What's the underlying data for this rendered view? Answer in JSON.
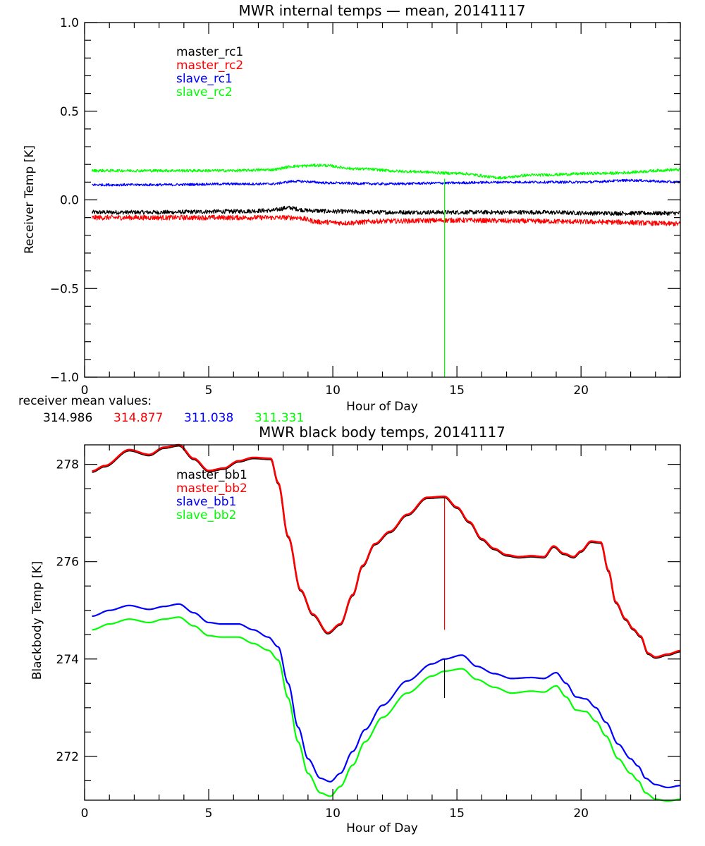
{
  "colors": {
    "black": "#000000",
    "red": "#ff0000",
    "blue": "#0000ff",
    "green": "#00ff00"
  },
  "receiver_mean": {
    "label": "receiver mean values:",
    "values": [
      {
        "text": "314.986",
        "color": "#000000"
      },
      {
        "text": "314.877",
        "color": "#ff0000"
      },
      {
        "text": "311.038",
        "color": "#0000ff"
      },
      {
        "text": "311.331",
        "color": "#00ff00"
      }
    ]
  },
  "chart_data": [
    {
      "type": "line",
      "title": "MWR internal temps — mean, 20141117",
      "xlabel": "Hour of Day",
      "ylabel": "Receiver Temp [K]",
      "xlim": [
        0,
        24
      ],
      "ylim": [
        -1.0,
        1.0
      ],
      "xticks": [
        0,
        5,
        10,
        15,
        20
      ],
      "xtick_labels": [
        "0",
        "5",
        "10",
        "15",
        "20"
      ],
      "yticks": [
        -1.0,
        -0.5,
        0.0,
        0.5,
        1.0
      ],
      "ytick_labels": [
        "−1.0",
        "−0.5",
        "0.0",
        "0.5",
        "1.0"
      ],
      "legend_placement": "top-left",
      "noisy": true,
      "series": [
        {
          "name": "master_rc1",
          "color": "#000000",
          "noise": 0.012,
          "x": [
            0.3,
            3,
            6,
            7.5,
            8.2,
            9,
            10,
            12,
            15,
            18,
            21,
            24
          ],
          "y": [
            -0.07,
            -0.07,
            -0.065,
            -0.06,
            -0.045,
            -0.06,
            -0.065,
            -0.07,
            -0.07,
            -0.07,
            -0.075,
            -0.075
          ]
        },
        {
          "name": "master_rc2",
          "color": "#ff0000",
          "noise": 0.014,
          "x": [
            0.3,
            3,
            6,
            8.5,
            9.5,
            10.5,
            12,
            15,
            18,
            21,
            24
          ],
          "y": [
            -0.1,
            -0.1,
            -0.1,
            -0.1,
            -0.125,
            -0.13,
            -0.12,
            -0.115,
            -0.12,
            -0.125,
            -0.135
          ]
        },
        {
          "name": "slave_rc1",
          "color": "#0000ff",
          "noise": 0.007,
          "x": [
            0.3,
            3,
            6,
            7.5,
            8.5,
            10,
            12,
            14.5,
            17,
            20,
            22,
            24
          ],
          "y": [
            0.085,
            0.085,
            0.09,
            0.09,
            0.105,
            0.095,
            0.09,
            0.095,
            0.1,
            0.1,
            0.11,
            0.1
          ]
        },
        {
          "name": "slave_rc2",
          "color": "#00ff00",
          "noise": 0.008,
          "x": [
            0.3,
            3,
            6,
            7.5,
            8.5,
            9.5,
            11,
            13,
            15,
            16.8,
            18,
            21,
            24
          ],
          "y": [
            0.165,
            0.165,
            0.165,
            0.17,
            0.19,
            0.195,
            0.175,
            0.16,
            0.15,
            0.125,
            0.14,
            0.15,
            0.17
          ]
        }
      ],
      "spikes": [
        {
          "color": "#00ff00",
          "x": 14.5,
          "from": 0.12,
          "to": -1.0
        }
      ]
    },
    {
      "type": "line",
      "title": "MWR black body temps, 20141117",
      "xlabel": "Hour of Day",
      "ylabel": "Blackbody Temp [K]",
      "xlim": [
        0,
        24
      ],
      "ylim": [
        271.1,
        278.4
      ],
      "xticks": [
        0,
        5,
        10,
        15,
        20
      ],
      "xtick_labels": [
        "0",
        "5",
        "10",
        "15",
        "20"
      ],
      "yticks": [
        272,
        274,
        276,
        278
      ],
      "ytick_labels": [
        "272",
        "274",
        "276",
        "278"
      ],
      "legend_placement": "top-left",
      "noisy": false,
      "series": [
        {
          "name": "master_bb1",
          "color": "#000000",
          "x": [
            0.3,
            0.8,
            1.8,
            2.6,
            3.2,
            3.8,
            4.4,
            5.0,
            5.6,
            6.2,
            6.8,
            7.5,
            7.8,
            8.2,
            8.7,
            9.2,
            9.8,
            10.3,
            10.8,
            11.2,
            11.7,
            12.3,
            13.0,
            13.8,
            14.5,
            15.0,
            15.5,
            16.0,
            16.5,
            17.0,
            17.5,
            18.0,
            18.5,
            18.9,
            19.3,
            19.7,
            20.0,
            20.4,
            20.8,
            21.1,
            21.4,
            21.8,
            22.1,
            22.4,
            22.7,
            23.0,
            23.5,
            24.0
          ],
          "y": [
            277.84,
            277.95,
            278.28,
            278.18,
            278.33,
            278.38,
            278.1,
            277.85,
            277.9,
            278.05,
            278.12,
            278.1,
            277.6,
            276.5,
            275.4,
            274.9,
            274.52,
            274.7,
            275.3,
            275.9,
            276.35,
            276.6,
            276.95,
            277.3,
            277.32,
            277.1,
            276.8,
            276.45,
            276.25,
            276.12,
            276.08,
            276.1,
            276.08,
            276.3,
            276.15,
            276.08,
            276.2,
            276.4,
            276.38,
            275.8,
            275.15,
            274.8,
            274.6,
            274.45,
            274.1,
            274.02,
            274.08,
            274.15
          ]
        },
        {
          "name": "master_bb2",
          "color": "#ff0000",
          "x": [
            0.3,
            0.8,
            1.8,
            2.6,
            3.2,
            3.8,
            4.4,
            5.0,
            5.6,
            6.2,
            6.8,
            7.5,
            7.8,
            8.2,
            8.7,
            9.2,
            9.8,
            10.3,
            10.8,
            11.2,
            11.7,
            12.3,
            13.0,
            13.8,
            14.5,
            15.0,
            15.5,
            16.0,
            16.5,
            17.0,
            17.5,
            18.0,
            18.5,
            18.9,
            19.3,
            19.7,
            20.0,
            20.4,
            20.8,
            21.1,
            21.4,
            21.8,
            22.1,
            22.4,
            22.7,
            23.0,
            23.5,
            24.0
          ],
          "y": [
            277.86,
            277.97,
            278.3,
            278.2,
            278.35,
            278.4,
            278.12,
            277.87,
            277.92,
            278.07,
            278.14,
            278.12,
            277.62,
            276.52,
            275.42,
            274.92,
            274.54,
            274.72,
            275.32,
            275.92,
            276.37,
            276.62,
            276.97,
            277.32,
            277.34,
            277.12,
            276.82,
            276.47,
            276.27,
            276.14,
            276.1,
            276.12,
            276.1,
            276.32,
            276.17,
            276.1,
            276.22,
            276.42,
            276.4,
            275.82,
            275.17,
            274.82,
            274.62,
            274.47,
            274.12,
            274.04,
            274.1,
            274.17
          ]
        },
        {
          "name": "slave_bb1",
          "color": "#0000ff",
          "x": [
            0.3,
            1.0,
            1.8,
            2.6,
            3.2,
            3.8,
            4.4,
            5.0,
            5.5,
            6.2,
            6.8,
            7.4,
            7.8,
            8.2,
            8.6,
            9.0,
            9.5,
            9.9,
            10.3,
            10.8,
            11.3,
            12.0,
            13.0,
            14.0,
            14.5,
            15.2,
            15.8,
            16.5,
            17.2,
            18.0,
            18.5,
            19.0,
            19.4,
            19.8,
            20.2,
            20.6,
            21.0,
            21.5,
            22.0,
            22.3,
            22.6,
            23.0,
            23.5,
            24.0
          ],
          "y": [
            274.88,
            275.0,
            275.1,
            275.02,
            275.08,
            275.13,
            274.95,
            274.75,
            274.72,
            274.72,
            274.6,
            274.45,
            274.25,
            273.5,
            272.6,
            271.95,
            271.55,
            271.48,
            271.65,
            272.1,
            272.55,
            273.05,
            273.55,
            273.9,
            274.0,
            274.08,
            273.85,
            273.7,
            273.6,
            273.62,
            273.6,
            273.72,
            273.5,
            273.22,
            273.18,
            273.0,
            272.7,
            272.25,
            271.95,
            271.8,
            271.55,
            271.42,
            271.36,
            271.4
          ]
        },
        {
          "name": "slave_bb2",
          "color": "#00ff00",
          "x": [
            0.3,
            1.0,
            1.8,
            2.6,
            3.2,
            3.8,
            4.4,
            5.0,
            5.5,
            6.2,
            6.8,
            7.4,
            7.8,
            8.2,
            8.6,
            9.0,
            9.5,
            9.9,
            10.3,
            10.8,
            11.3,
            12.0,
            13.0,
            14.0,
            14.5,
            15.2,
            15.8,
            16.5,
            17.2,
            18.0,
            18.5,
            19.0,
            19.4,
            19.8,
            20.2,
            20.6,
            21.0,
            21.5,
            22.0,
            22.3,
            22.6,
            23.0,
            23.5,
            24.0
          ],
          "y": [
            274.6,
            274.72,
            274.82,
            274.75,
            274.82,
            274.86,
            274.68,
            274.48,
            274.45,
            274.45,
            274.32,
            274.18,
            273.98,
            273.2,
            272.3,
            271.65,
            271.25,
            271.18,
            271.38,
            271.82,
            272.3,
            272.8,
            273.3,
            273.65,
            273.75,
            273.8,
            273.58,
            273.42,
            273.3,
            273.34,
            273.32,
            273.45,
            273.22,
            272.95,
            272.92,
            272.72,
            272.42,
            271.95,
            271.65,
            271.5,
            271.25,
            271.12,
            271.08,
            271.12
          ]
        }
      ],
      "spikes": [
        {
          "color": "#ff0000",
          "x": 14.5,
          "from": 277.3,
          "to": 274.6
        },
        {
          "color": "#000000",
          "x": 14.5,
          "from": 274.0,
          "to": 273.2
        }
      ]
    }
  ]
}
